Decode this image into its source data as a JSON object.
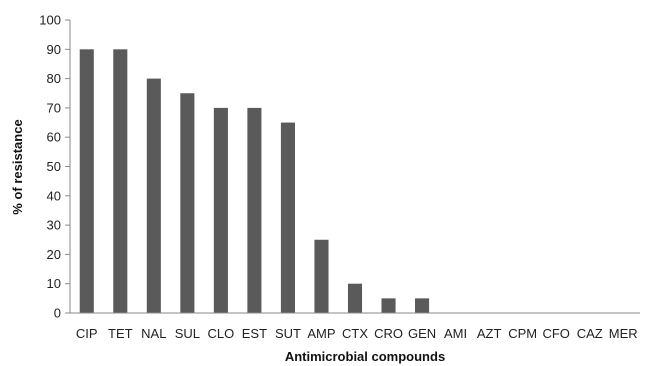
{
  "chart_data": {
    "type": "bar",
    "title": "",
    "xlabel": "Antimicrobial compounds",
    "ylabel": "% of resistance",
    "ylim": [
      0,
      100
    ],
    "ytick_step": 10,
    "grid": false,
    "legend": "none",
    "bar_color": "#5a5a5a",
    "categories": [
      "CIP",
      "TET",
      "NAL",
      "SUL",
      "CLO",
      "EST",
      "SUT",
      "AMP",
      "CTX",
      "CRO",
      "GEN",
      "AMI",
      "AZT",
      "CPM",
      "CFO",
      "CAZ",
      "MER"
    ],
    "values": [
      90,
      90,
      80,
      75,
      70,
      70,
      65,
      25,
      10,
      5,
      5,
      0,
      0,
      0,
      0,
      0,
      0
    ]
  }
}
